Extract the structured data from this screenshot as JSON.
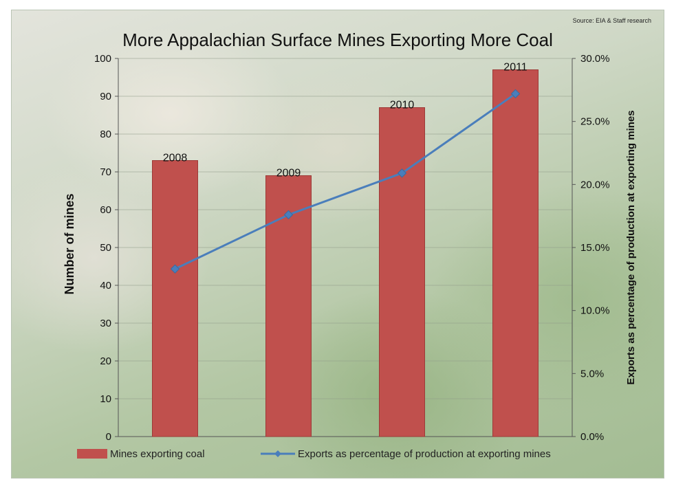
{
  "chart_data": {
    "type": "bar",
    "title": "More Appalachian Surface Mines Exporting More Coal",
    "source": "Source: EIA & Staff research",
    "categories": [
      "2008",
      "2009",
      "2010",
      "2011"
    ],
    "bar_labels": [
      "2008",
      "2009",
      "2010",
      "2011"
    ],
    "series": [
      {
        "name": "Mines exporting coal",
        "kind": "bar",
        "axis": "left",
        "values": [
          73,
          69,
          87,
          97
        ],
        "color": "#c0504d"
      },
      {
        "name": "Exports as percentage of production at exporting mines",
        "kind": "line",
        "axis": "right",
        "values": [
          13.3,
          17.6,
          20.9,
          27.2
        ],
        "color": "#4a7ebb"
      }
    ],
    "ylabel": "Number of mines",
    "y2label": "Exports as percentage of production at exporting mines",
    "ylim": [
      0,
      100
    ],
    "y2lim": [
      0,
      30
    ],
    "yticks": [
      "0",
      "10",
      "20",
      "30",
      "40",
      "50",
      "60",
      "70",
      "80",
      "90",
      "100"
    ],
    "y2ticks": [
      "0.0%",
      "5.0%",
      "10.0%",
      "15.0%",
      "20.0%",
      "25.0%",
      "30.0%"
    ],
    "grid": true,
    "legend_position": "bottom"
  }
}
